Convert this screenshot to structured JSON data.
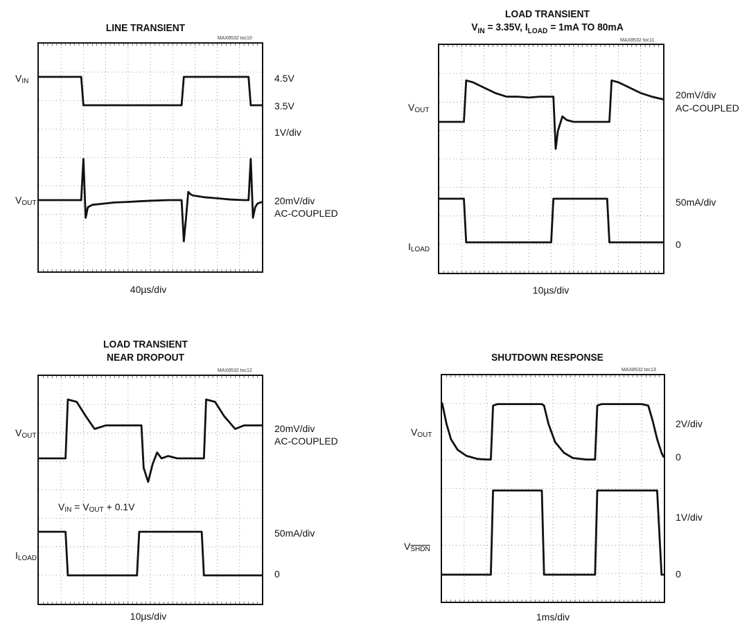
{
  "chart_data": [
    {
      "type": "line",
      "title": "LINE TRANSIENT",
      "code": "MAX8532 toc10",
      "time_scale": "40µs/div",
      "x": [
        0,
        0.18,
        0.19,
        0.2,
        0.21,
        0.22,
        0.23,
        0.24,
        0.29,
        0.34,
        0.4,
        0.45,
        0.51,
        0.58,
        0.64,
        0.65,
        0.66,
        0.67,
        0.68,
        0.69,
        0.74,
        0.8,
        0.86,
        0.92,
        0.94,
        0.95,
        0.96,
        0.97,
        0.98,
        1.0
      ],
      "series": [
        {
          "label_main": "V",
          "label_sub": "IN",
          "scale": "1V/div",
          "levels": [
            "4.5V",
            "3.5V"
          ],
          "values": [
            4.5,
            4.5,
            4.5,
            3.5,
            3.5,
            3.5,
            3.5,
            3.5,
            3.5,
            3.5,
            3.5,
            3.5,
            3.5,
            3.5,
            3.5,
            4.5,
            4.5,
            4.5,
            4.5,
            4.5,
            4.5,
            4.5,
            4.5,
            4.5,
            4.5,
            3.5,
            3.5,
            3.5,
            3.5,
            3.5
          ]
        },
        {
          "label_main": "V",
          "label_sub": "OUT",
          "scale": "20mV/div",
          "coupling": "AC-COUPLED",
          "values": [
            0,
            0,
            0,
            70,
            -30,
            -12,
            -10,
            -8,
            -6,
            -4,
            -3,
            -2,
            -1,
            0,
            0,
            -70,
            -30,
            14,
            10,
            8,
            5,
            3,
            1,
            0,
            0,
            70,
            -30,
            -12,
            -6,
            -3
          ]
        }
      ]
    },
    {
      "type": "line",
      "title": "LOAD TRANSIENT",
      "subtitle_parts": [
        "V",
        "IN",
        " = 3.35V, I",
        "LOAD",
        " = 1mA TO 80mA"
      ],
      "code": "MAX8532 toc11",
      "time_scale": "10µs/div",
      "x": [
        0,
        0.1,
        0.11,
        0.12,
        0.15,
        0.2,
        0.25,
        0.3,
        0.35,
        0.4,
        0.45,
        0.5,
        0.51,
        0.52,
        0.53,
        0.55,
        0.57,
        0.6,
        0.65,
        0.7,
        0.75,
        0.76,
        0.77,
        0.8,
        0.85,
        0.9,
        0.95,
        1.0
      ],
      "series": [
        {
          "label_main": "V",
          "label_sub": "OUT",
          "scale": "20mV/div",
          "coupling": "AC-COUPLED",
          "values": [
            0,
            0,
            0,
            46,
            44,
            38,
            32,
            28,
            28,
            27,
            28,
            28,
            28,
            -30,
            -10,
            6,
            2,
            0,
            0,
            0,
            0,
            0,
            46,
            44,
            38,
            32,
            28,
            25
          ]
        },
        {
          "label_main": "I",
          "label_sub": "LOAD",
          "scale": "50mA/div",
          "levels": [
            "0"
          ],
          "values": [
            80,
            80,
            80,
            1,
            1,
            1,
            1,
            1,
            1,
            1,
            1,
            1,
            80,
            80,
            80,
            80,
            80,
            80,
            80,
            80,
            80,
            1,
            1,
            1,
            1,
            1,
            1,
            1
          ]
        }
      ]
    },
    {
      "type": "line",
      "title": "LOAD TRANSIENT",
      "subtitle": "NEAR DROPOUT",
      "code": "MAX8532 toc12",
      "annotation_parts": [
        "V",
        "IN",
        " = V",
        "OUT",
        " + 0.1V"
      ],
      "time_scale": "10µs/div",
      "x": [
        0,
        0.11,
        0.12,
        0.13,
        0.17,
        0.21,
        0.25,
        0.3,
        0.34,
        0.4,
        0.44,
        0.45,
        0.46,
        0.47,
        0.49,
        0.51,
        0.53,
        0.55,
        0.58,
        0.62,
        0.7,
        0.73,
        0.74,
        0.75,
        0.79,
        0.83,
        0.88,
        0.92,
        0.96,
        1.0
      ],
      "series": [
        {
          "label_main": "V",
          "label_sub": "OUT",
          "scale": "20mV/div",
          "coupling": "AC-COUPLED",
          "values": [
            0,
            0,
            0,
            50,
            48,
            36,
            25,
            28,
            28,
            28,
            28,
            28,
            28,
            -8,
            -20,
            -5,
            5,
            0,
            2,
            0,
            0,
            0,
            0,
            50,
            48,
            36,
            25,
            28,
            28,
            28
          ]
        },
        {
          "label_main": "I",
          "label_sub": "LOAD",
          "scale": "50mA/div",
          "levels": [
            "0"
          ],
          "values": [
            80,
            80,
            80,
            1,
            1,
            1,
            1,
            1,
            1,
            1,
            1,
            80,
            80,
            80,
            80,
            80,
            80,
            80,
            80,
            80,
            80,
            80,
            1,
            1,
            1,
            1,
            1,
            1,
            1,
            1
          ]
        }
      ]
    },
    {
      "type": "line",
      "title": "SHUTDOWN RESPONSE",
      "code": "MAX8532 toc13",
      "time_scale": "1ms/div",
      "x": [
        0,
        0.02,
        0.04,
        0.07,
        0.11,
        0.16,
        0.2,
        0.22,
        0.23,
        0.25,
        0.3,
        0.35,
        0.4,
        0.45,
        0.46,
        0.48,
        0.51,
        0.55,
        0.59,
        0.65,
        0.68,
        0.69,
        0.7,
        0.72,
        0.8,
        0.88,
        0.9,
        0.93,
        0.95,
        0.97,
        0.99,
        1.0
      ],
      "series": [
        {
          "label_main": "V",
          "label_sub": "OUT",
          "scale": "2V/div",
          "levels": [
            "0"
          ],
          "values": [
            1.9,
            1.2,
            0.7,
            0.35,
            0.15,
            0.05,
            0.03,
            0.03,
            1.8,
            1.85,
            1.85,
            1.85,
            1.85,
            1.85,
            1.8,
            1.2,
            0.6,
            0.25,
            0.08,
            0.03,
            0.03,
            0.03,
            1.8,
            1.85,
            1.85,
            1.85,
            1.85,
            1.8,
            1.3,
            0.7,
            0.25,
            0.1
          ]
        },
        {
          "label_main": "V",
          "label_sub": "SHDN",
          "label_overline": true,
          "scale": "1V/div",
          "levels": [
            "0"
          ],
          "values": [
            0,
            0,
            0,
            0,
            0,
            0,
            0,
            0,
            1.6,
            1.6,
            1.6,
            1.6,
            1.6,
            1.6,
            0,
            0,
            0,
            0,
            0,
            0,
            0,
            0,
            1.6,
            1.6,
            1.6,
            1.6,
            1.6,
            1.6,
            1.6,
            1.6,
            0,
            0
          ]
        }
      ]
    }
  ]
}
